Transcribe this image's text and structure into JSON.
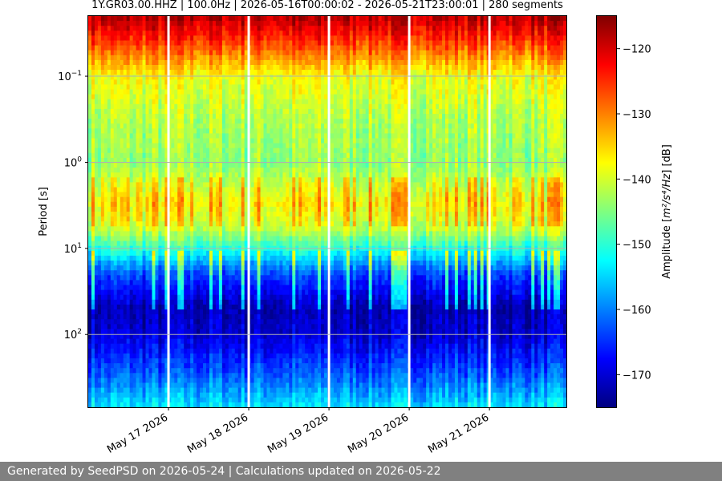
{
  "chart_data": {
    "type": "heatmap",
    "title": "1Y.GR03.00.HHZ | 100.0Hz | 2026-05-16T00:00:02 - 2026-05-21T23:00:01 | 280 segments",
    "xlabel": "",
    "ylabel": "Period [s]",
    "x_start": "2026-05-16T00:00:02",
    "x_end": "2026-05-21T23:00:01",
    "x_tick_labels": [
      "May 17 2026",
      "May 18 2026",
      "May 19 2026",
      "May 20 2026",
      "May 21 2026"
    ],
    "y_scale": "log",
    "y_range": [
      0.02,
      700
    ],
    "y_ticks": [
      0.1,
      1,
      10,
      100
    ],
    "y_tick_labels": [
      {
        "base": "10",
        "exp": "−1"
      },
      {
        "base": "10",
        "exp": "0"
      },
      {
        "base": "10",
        "exp": "1"
      },
      {
        "base": "10",
        "exp": "2"
      }
    ],
    "y_inverted": true,
    "grid": true,
    "colormap": "jet",
    "colorbar": {
      "label_text": "Amplitude [",
      "label_unit": "m²/s⁴/Hz",
      "label_end": "] [dB]",
      "range": [
        -175,
        -115
      ],
      "ticks": [
        -120,
        -130,
        -140,
        -150,
        -160,
        -170
      ],
      "tick_labels": [
        "−120",
        "−130",
        "−140",
        "−150",
        "−160",
        "−170"
      ]
    },
    "amplitude_profile": [
      {
        "period": 0.02,
        "db": -118
      },
      {
        "period": 0.035,
        "db": -124
      },
      {
        "period": 0.07,
        "db": -133
      },
      {
        "period": 0.1,
        "db": -138
      },
      {
        "period": 0.3,
        "db": -142
      },
      {
        "period": 1.0,
        "db": -144
      },
      {
        "period": 3.0,
        "db": -137
      },
      {
        "period": 6.0,
        "db": -141
      },
      {
        "period": 10,
        "db": -150
      },
      {
        "period": 20,
        "db": -163
      },
      {
        "period": 50,
        "db": -172
      },
      {
        "period": 100,
        "db": -170
      },
      {
        "period": 300,
        "db": -162
      },
      {
        "period": 700,
        "db": -154
      }
    ],
    "segments": 280,
    "sampling_rate": "100.0Hz",
    "channel": "1Y.GR03.00.HHZ"
  },
  "footer": {
    "text": "Generated by SeedPSD on 2026-05-24 | Calculations updated on 2026-05-22"
  }
}
